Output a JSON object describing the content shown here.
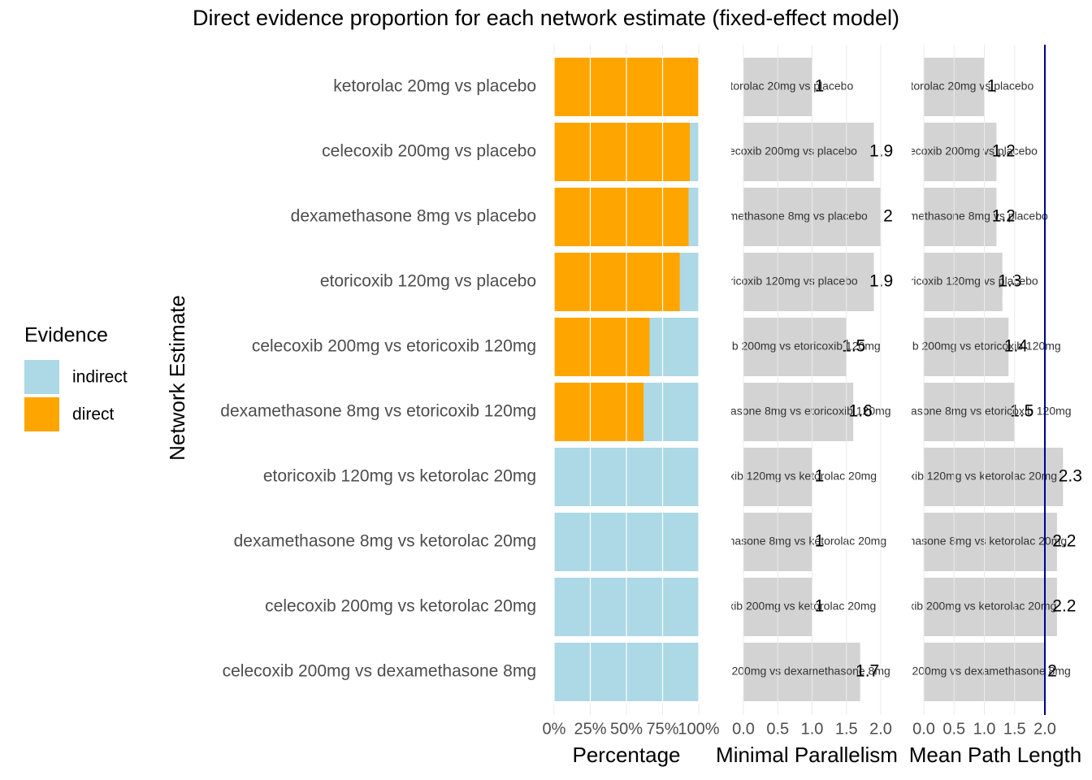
{
  "chart_data": [
    {
      "type": "bar",
      "orientation": "horizontal",
      "stacked": true,
      "title": "Direct evidence proportion for each network estimate (fixed-effect model)",
      "ylabel": "Network Estimate",
      "xlabel": "Percentage",
      "legend_title": "Evidence",
      "legend": "left",
      "categories": [
        "ketorolac 20mg vs placebo",
        "celecoxib 200mg vs placebo",
        "dexamethasone 8mg vs placebo",
        "etoricoxib 120mg vs placebo",
        "celecoxib 200mg vs etoricoxib 120mg",
        "dexamethasone 8mg vs etoricoxib 120mg",
        "etoricoxib 120mg vs ketorolac 20mg",
        "dexamethasone 8mg vs ketorolac 20mg",
        "celecoxib 200mg vs ketorolac 20mg",
        "celecoxib 200mg vs dexamethasone 8mg"
      ],
      "series": [
        {
          "name": "indirect",
          "color": "#add8e6",
          "values": [
            0,
            6,
            7,
            13,
            34,
            38,
            100,
            100,
            100,
            100
          ]
        },
        {
          "name": "direct",
          "color": "#ffa500",
          "values": [
            100,
            94,
            93,
            87,
            66,
            62,
            0,
            0,
            0,
            0
          ]
        }
      ],
      "xlim": [
        0,
        100
      ],
      "xticks": [
        {
          "value": 0,
          "label": "0%"
        },
        {
          "value": 25,
          "label": "25%"
        },
        {
          "value": 50,
          "label": "50%"
        },
        {
          "value": 75,
          "label": "75%"
        },
        {
          "value": 100,
          "label": "100%"
        }
      ],
      "grid": true
    },
    {
      "type": "bar",
      "orientation": "horizontal",
      "xlabel": "Minimal Parallelism",
      "categories": [
        "ketorolac 20mg vs placebo",
        "celecoxib 200mg vs placebo",
        "dexamethasone 8mg vs placebo",
        "etoricoxib 120mg vs placebo",
        "celecoxib 200mg vs etoricoxib 120mg",
        "dexamethasone 8mg vs etoricoxib 120mg",
        "etoricoxib 120mg vs ketorolac 20mg",
        "dexamethasone 8mg vs ketorolac 20mg",
        "celecoxib 200mg vs ketorolac 20mg",
        "celecoxib 200mg vs dexamethasone 8mg"
      ],
      "values": [
        1,
        1.9,
        2,
        1.9,
        1.5,
        1.6,
        1,
        1,
        1,
        1.7
      ],
      "color": "#d3d3d3",
      "xlim": [
        0,
        2.1
      ],
      "xticks": [
        {
          "value": 0,
          "label": "0.0"
        },
        {
          "value": 0.5,
          "label": "0.5"
        },
        {
          "value": 1,
          "label": "1.0"
        },
        {
          "value": 1.5,
          "label": "1.5"
        },
        {
          "value": 2,
          "label": "2.0"
        }
      ],
      "grid": true
    },
    {
      "type": "bar",
      "orientation": "horizontal",
      "xlabel": "Mean Path Length",
      "categories": [
        "ketorolac 20mg vs placebo",
        "celecoxib 200mg vs placebo",
        "dexamethasone 8mg vs placebo",
        "etoricoxib 120mg vs placebo",
        "celecoxib 200mg vs etoricoxib 120mg",
        "dexamethasone 8mg vs etoricoxib 120mg",
        "etoricoxib 120mg vs ketorolac 20mg",
        "dexamethasone 8mg vs ketorolac 20mg",
        "celecoxib 200mg vs ketorolac 20mg",
        "celecoxib 200mg vs dexamethasone 8mg"
      ],
      "values": [
        1,
        1.2,
        1.2,
        1.3,
        1.4,
        1.5,
        2.3,
        2.2,
        2.2,
        2
      ],
      "color": "#d3d3d3",
      "xlim": [
        0,
        2.7
      ],
      "xticks": [
        {
          "value": 0,
          "label": "0.0"
        },
        {
          "value": 0.5,
          "label": "0.5"
        },
        {
          "value": 1,
          "label": "1.0"
        },
        {
          "value": 1.5,
          "label": "1.5"
        },
        {
          "value": 2,
          "label": "2.0"
        }
      ],
      "grid": true,
      "vline": 2,
      "vline_color": "#00008b"
    }
  ]
}
